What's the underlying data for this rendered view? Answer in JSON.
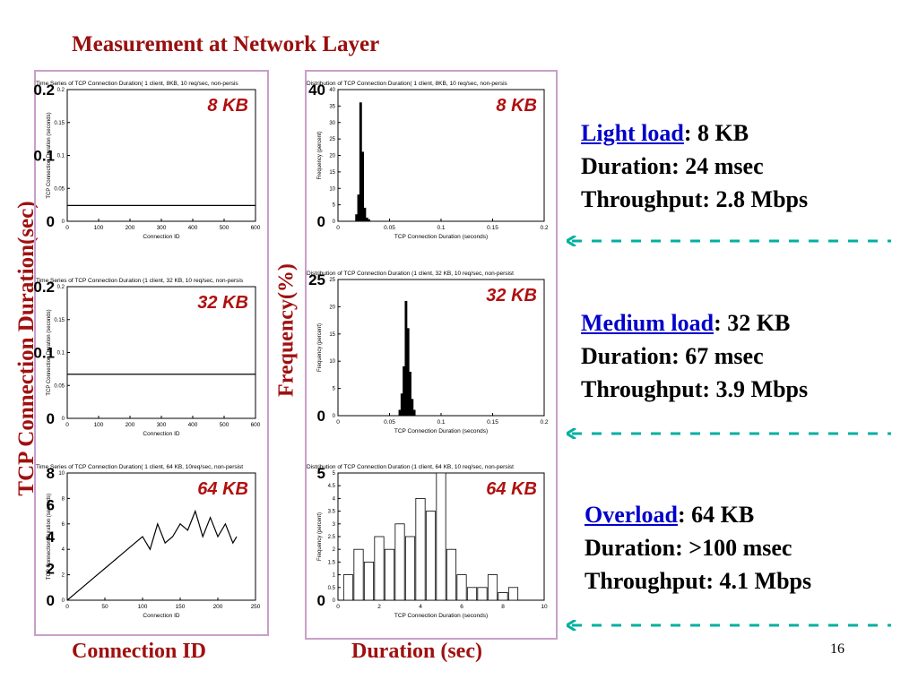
{
  "title": "Measurement at Network Layer",
  "left_axis_label": "TCP Connection Duration(sec)",
  "middle_axis_label": "Frequency(%)",
  "bottom_left_label": "Connection ID",
  "bottom_right_label": "Duration (sec)",
  "page_number": "16",
  "loads": [
    {
      "link": "Light load",
      "rest": ": 8 KB",
      "duration": "Duration: 24 msec",
      "throughput": "Throughput: 2.8 Mbps"
    },
    {
      "link": "Medium load",
      "rest": ": 32 KB",
      "duration": "Duration: 67 msec",
      "throughput": "Throughput: 3.9 Mbps"
    },
    {
      "link": "Overload",
      "rest": ": 64 KB",
      "duration": "Duration: >100 msec",
      "throughput": "Throughput: 4.1 Mbps"
    }
  ],
  "colors": {
    "title": "#9a0e0e",
    "axis_label": "#a01010",
    "link": "#0000cc",
    "arrow": "#00b0a0",
    "chart_label": "#b01010"
  },
  "chart_data": [
    {
      "type": "line",
      "title": "Time Series of TCP Connection Duration( 1 client, 8KB, 10 req/sec, non-persis",
      "badge": "8 KB",
      "ylabel": "TCP Connection Duration (seconds)",
      "xlabel": "Connection ID",
      "xlim": [
        0,
        600
      ],
      "ylim": [
        0,
        0.2
      ],
      "xticks": [
        "0",
        "100",
        "200",
        "300",
        "400",
        "500",
        "600"
      ],
      "yticks": [
        "0",
        "0.05",
        "0.1",
        "0.15",
        "0.2"
      ],
      "big_yticks": [
        "0.2",
        "0.1",
        "0"
      ],
      "x": [
        0,
        600
      ],
      "y": [
        0.024,
        0.024
      ]
    },
    {
      "type": "bar",
      "title": "Distribution of TCP Connection Duration( 1 client, 8KB, 10 req/sec, non-persis",
      "badge": "8 KB",
      "ylabel": "Frequency (percent)",
      "xlabel": "TCP Connection Duration (seconds)",
      "xlim": [
        0,
        0.2
      ],
      "ylim": [
        0,
        40
      ],
      "xticks": [
        "0",
        "0.05",
        "0.1",
        "0.15",
        "0.2"
      ],
      "yticks": [
        "0",
        "5",
        "10",
        "15",
        "20",
        "25",
        "30",
        "35",
        "40"
      ],
      "big_yticks": [
        "40",
        "0"
      ],
      "x": [
        0.018,
        0.02,
        0.022,
        0.024,
        0.026,
        0.028,
        0.03
      ],
      "values": [
        2,
        8,
        36,
        21,
        4,
        1,
        0.5
      ]
    },
    {
      "type": "line",
      "title": "Time Series of TCP Connection Duration (1 client, 32 KB, 10 req/sec, non-persis",
      "badge": "32 KB",
      "ylabel": "TCP Connection Duration (seconds)",
      "xlabel": "Connection ID",
      "xlim": [
        0,
        600
      ],
      "ylim": [
        0,
        0.2
      ],
      "xticks": [
        "0",
        "100",
        "200",
        "300",
        "400",
        "500",
        "600"
      ],
      "yticks": [
        "0",
        "0.05",
        "0.1",
        "0.15",
        "0.2"
      ],
      "big_yticks": [
        "0.2",
        "0.1",
        "0"
      ],
      "x": [
        0,
        600
      ],
      "y": [
        0.067,
        0.067
      ]
    },
    {
      "type": "bar",
      "title": "Distribution of TCP Connection Duration (1 client, 32 KB, 10 req/sec, non-persist",
      "badge": "32 KB",
      "ylabel": "Frequency (percent)",
      "xlabel": "TCP Connection Duration (seconds)",
      "xlim": [
        0,
        0.2
      ],
      "ylim": [
        0,
        25
      ],
      "xticks": [
        "0",
        "0.05",
        "0.1",
        "0.15",
        "0.2"
      ],
      "yticks": [
        "0",
        "5",
        "10",
        "15",
        "20",
        "25"
      ],
      "big_yticks": [
        "25",
        "0"
      ],
      "x": [
        0.06,
        0.062,
        0.064,
        0.066,
        0.068,
        0.07,
        0.072,
        0.074
      ],
      "values": [
        1,
        4,
        9,
        21,
        16,
        8,
        3,
        1
      ]
    },
    {
      "type": "line",
      "title": "Time Series of TCP Connection Duration( 1 client, 64 KB, 10req/sec, non-persist",
      "badge": "64 KB",
      "ylabel": "TCP Connection Duration (seconds)",
      "xlabel": "Connection ID",
      "xlim": [
        0,
        250
      ],
      "ylim": [
        0,
        10
      ],
      "xticks": [
        "0",
        "50",
        "100",
        "150",
        "200",
        "250"
      ],
      "yticks": [
        "0",
        "2",
        "4",
        "6",
        "8",
        "10"
      ],
      "big_yticks": [
        "8",
        "6",
        "4",
        "2",
        "0"
      ],
      "x": [
        0,
        10,
        20,
        30,
        40,
        50,
        60,
        70,
        80,
        90,
        100,
        110,
        120,
        130,
        140,
        150,
        160,
        170,
        180,
        190,
        200,
        210,
        220,
        225
      ],
      "y": [
        0,
        0.5,
        1,
        1.5,
        2,
        2.5,
        3,
        3.5,
        4,
        4.5,
        5,
        4,
        6,
        4.5,
        5,
        6,
        5.5,
        7,
        5,
        6.5,
        5,
        6,
        4.5,
        5
      ]
    },
    {
      "type": "bar",
      "title": "Distribution of TCP Connection Duration (1 client, 64 KB, 10 req/sec, non-persist",
      "badge": "64 KB",
      "ylabel": "Frequency (percent)",
      "xlabel": "TCP Connection Duration (seconds)",
      "xlim": [
        0,
        10
      ],
      "ylim": [
        0,
        5
      ],
      "xticks": [
        "0",
        "2",
        "4",
        "6",
        "8",
        "10"
      ],
      "yticks": [
        "0",
        "0.5",
        "1",
        "1.5",
        "2",
        "2.5",
        "3",
        "3.5",
        "4",
        "4.5",
        "5"
      ],
      "big_yticks": [
        "5",
        "0"
      ],
      "x": [
        0.5,
        1,
        1.5,
        2,
        2.5,
        3,
        3.5,
        4,
        4.5,
        5,
        5.5,
        6,
        6.5,
        7,
        7.5,
        8,
        8.5
      ],
      "values": [
        1,
        2,
        1.5,
        2.5,
        2,
        3,
        2.5,
        4,
        3.5,
        5,
        2,
        1,
        0.5,
        0.5,
        1,
        0.3,
        0.5
      ]
    }
  ]
}
